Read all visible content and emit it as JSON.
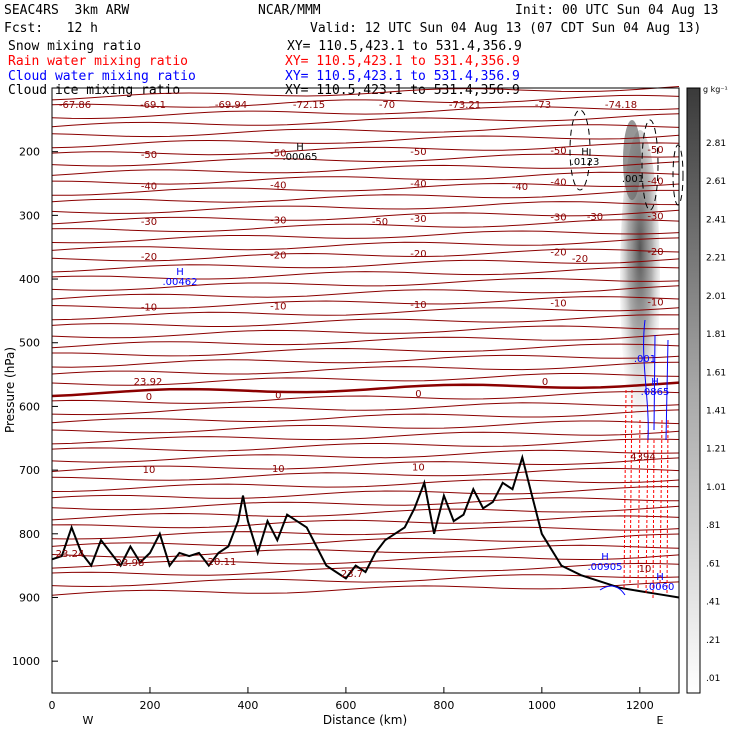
{
  "header": {
    "model": "SEAC4RS  3km ARW",
    "center": "NCAR/MMM",
    "init": "Init: 00 UTC Sun 04 Aug 13",
    "fcst": "Fcst:   12 h",
    "valid": "Valid: 12 UTC Sun 04 Aug 13 (07 CDT Sun 04 Aug 13)",
    "fields": [
      {
        "name": "Snow mixing ratio",
        "xy": "XY= 110.5,423.1 to 531.4,356.9",
        "color": "#000000"
      },
      {
        "name": "Rain water mixing ratio",
        "xy": "XY= 110.5,423.1 to 531.4,356.9",
        "color": "#ff0000"
      },
      {
        "name": "Cloud water mixing ratio",
        "xy": "XY= 110.5,423.1 to 531.4,356.9",
        "color": "#0000ff"
      },
      {
        "name": "Cloud ice mixing ratio",
        "xy": "XY= 110.5,423.1 to 531.4,356.9",
        "color": "#000000"
      }
    ]
  },
  "chart_data": {
    "type": "contour",
    "xlabel": "Distance (km)",
    "ylabel": "Pressure (hPa)",
    "xlim": [
      0,
      1280
    ],
    "ylim": [
      100,
      1050
    ],
    "xticks": [
      0,
      200,
      400,
      600,
      800,
      1000,
      1200
    ],
    "yticks": [
      200,
      300,
      400,
      500,
      600,
      700,
      800,
      900,
      1000
    ],
    "x_end_labels": {
      "left": "W",
      "right": "E"
    },
    "colorbar": {
      "unit": "g kg⁻¹",
      "labels": [
        "2.81",
        "2.61",
        "2.41",
        "2.21",
        "2.01",
        "1.81",
        "1.61",
        "1.41",
        "1.21",
        "1.01",
        ".81",
        ".61",
        ".41",
        ".21",
        ".01"
      ]
    },
    "temperature_contours": {
      "color": "#8b0000",
      "levels": [
        {
          "label": "-50",
          "p": 205
        },
        {
          "label": "-40",
          "p": 255
        },
        {
          "label": "-30",
          "p": 310
        },
        {
          "label": "-20",
          "p": 365
        },
        {
          "label": "-10",
          "p": 445
        },
        {
          "label": "0",
          "p": 585
        },
        {
          "label": "10",
          "p": 700
        }
      ],
      "top_labels": [
        "-67.86",
        "-69.1",
        "-69.94",
        "-72.15",
        "-70",
        "-73.21",
        "-73",
        "-74.18"
      ],
      "extra_labels": [
        "-50",
        "-40",
        "-30",
        "-20",
        "0",
        "23.92",
        "23.24",
        "23.98",
        "20.11",
        "23.7",
        "10",
        "4394"
      ]
    },
    "extrema": [
      {
        "kind": "H",
        "value": ".00065",
        "color": "#000000"
      },
      {
        "kind": "H",
        "value": ".0123",
        "color": "#000000"
      },
      {
        "kind": "H",
        "value": ".00462",
        "color": "#0000ff"
      },
      {
        "kind": "H",
        "value": ".00905",
        "color": "#0000ff"
      },
      {
        "kind": "H",
        "value": ".0865",
        "color": "#0000ff"
      },
      {
        "kind": "H",
        "value": ".0060",
        "color": "#0000ff"
      },
      {
        "kind": "",
        "value": ".001",
        "color": "#000000"
      },
      {
        "kind": "",
        "value": ".001",
        "color": "#0000ff"
      }
    ],
    "terrain_profile": {
      "x": [
        0,
        20,
        40,
        60,
        80,
        100,
        120,
        140,
        160,
        180,
        200,
        220,
        240,
        260,
        280,
        300,
        320,
        340,
        360,
        380,
        390,
        400,
        420,
        440,
        460,
        480,
        500,
        520,
        540,
        560,
        580,
        600,
        620,
        640,
        660,
        680,
        700,
        720,
        740,
        760,
        780,
        800,
        820,
        840,
        860,
        880,
        900,
        920,
        940,
        960,
        980,
        1000,
        1040,
        1080,
        1120,
        1160,
        1200,
        1240,
        1280
      ],
      "p": [
        840,
        835,
        790,
        830,
        850,
        810,
        830,
        850,
        820,
        845,
        830,
        800,
        850,
        830,
        835,
        830,
        850,
        830,
        820,
        780,
        740,
        780,
        830,
        780,
        810,
        770,
        780,
        790,
        820,
        850,
        860,
        870,
        850,
        860,
        830,
        810,
        800,
        790,
        760,
        720,
        800,
        740,
        780,
        770,
        730,
        760,
        750,
        720,
        730,
        680,
        740,
        800,
        850,
        865,
        875,
        885,
        890,
        895,
        900
      ]
    }
  }
}
